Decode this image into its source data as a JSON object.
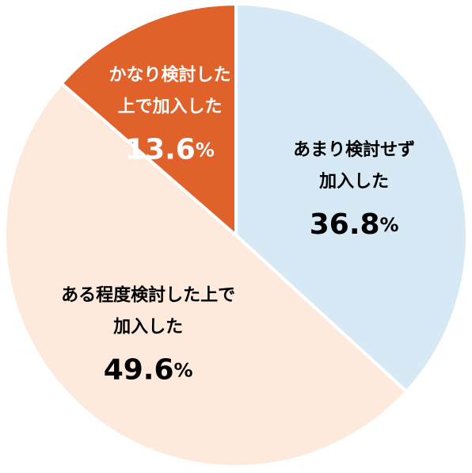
{
  "chart_data": {
    "type": "pie",
    "start_angle_deg": 0,
    "direction": "clockwise",
    "slices": [
      {
        "label_lines": [
          "あまり検討せず",
          "加入した"
        ],
        "value": 36.8,
        "value_text": "36.8",
        "unit": "%",
        "color": "#d6e9f5",
        "text_color": "#000000"
      },
      {
        "label_lines": [
          "ある程度検討した上で",
          "加入した"
        ],
        "value": 49.6,
        "value_text": "49.6",
        "unit": "%",
        "color": "#fdeadd",
        "text_color": "#000000"
      },
      {
        "label_lines": [
          "かなり検討した",
          "上で加入した"
        ],
        "value": 13.6,
        "value_text": "13.6",
        "unit": "%",
        "color": "#e0612a",
        "text_color": "#ffffff"
      }
    ]
  }
}
